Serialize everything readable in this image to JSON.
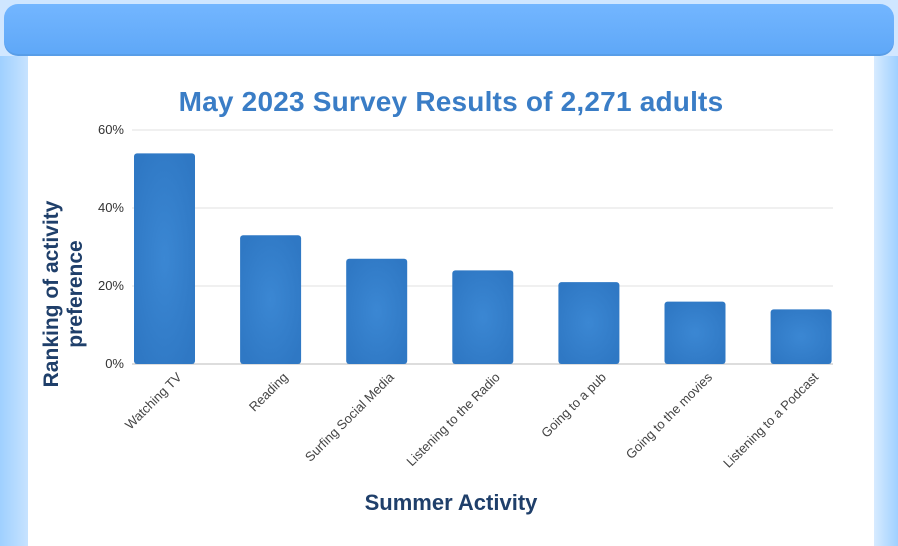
{
  "chart_data": {
    "type": "bar",
    "title": "May 2023 Survey Results of 2,271 adults",
    "xlabel": "Summer Activity",
    "ylabel": "Ranking of activity preference",
    "categories": [
      "Watching TV",
      "Reading",
      "Surfing Social Media",
      "Listening to the Radio",
      "Going to a pub",
      "Going to the movies",
      "Listening to a Podcast"
    ],
    "values": [
      54,
      33,
      27,
      24,
      21,
      16,
      14
    ],
    "ylim": [
      0,
      60
    ],
    "yticks": [
      "0%",
      "20%",
      "40%",
      "60%"
    ],
    "grid": true,
    "bar_color": "#2f78c4",
    "title_color": "#3a7dc6"
  }
}
